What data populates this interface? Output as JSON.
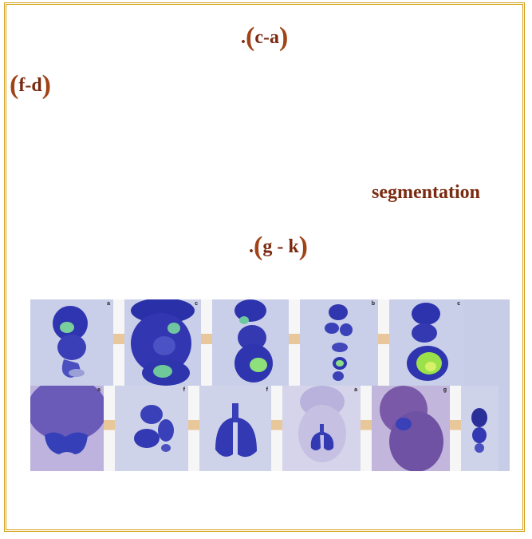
{
  "labels": {
    "line1_prefix": ".",
    "line1": "c-a",
    "line2": "f-d",
    "segmentation": "segmentation",
    "line4_prefix": ".",
    "line4": "g - k"
  },
  "panel_letters": {
    "top": [
      "a",
      "c",
      "",
      "b",
      "c"
    ],
    "bottom": [
      "a",
      "f",
      "f",
      "a",
      "g",
      ""
    ]
  },
  "colors": {
    "frame": "#d4a017",
    "text": "#7a2a10",
    "parenthesis": "#a04418",
    "tissue_blue": "#3d3fb8",
    "tissue_green": "#9be24a"
  }
}
